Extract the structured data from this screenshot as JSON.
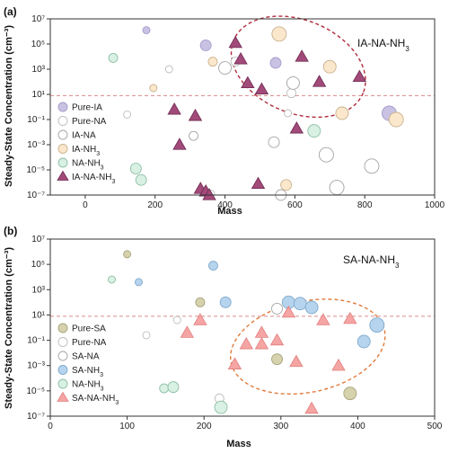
{
  "chart_data": [
    {
      "type": "scatter",
      "panel_label": "(a)",
      "title": "IA-NA-NH3",
      "title_parts": [
        "IA-NA-NH",
        "3"
      ],
      "xlabel": "Mass",
      "ylabel": "Steady-State Concentration (cm⁻³)",
      "xlim": [
        -100,
        1000
      ],
      "ylim_log10": [
        -7,
        7
      ],
      "x_ticks": [
        "0",
        "200",
        "400",
        "600",
        "800",
        "1000"
      ],
      "y_ticks": [
        "10⁻⁷",
        "10⁻⁵",
        "10⁻³",
        "10⁻¹",
        "10¹",
        "10³",
        "10⁵",
        "10⁷"
      ],
      "threshold_log10": 0.9,
      "grid": false,
      "legend_position": "lower-left",
      "ellipse": {
        "cx": 610,
        "cy_log10": 3.2,
        "rx": 200,
        "ry_log10": 3.7,
        "rotate": 22,
        "color": "#b02a3a"
      },
      "series": [
        {
          "name": "Pure-IA",
          "label_parts": [
            "Pure-IA",
            ""
          ],
          "shape": "circle",
          "fill": "#c9c2e3",
          "stroke": "#a59cc9",
          "x": [
            175,
            345,
            545,
            870
          ],
          "y_log10": [
            6.1,
            4.9,
            3.5,
            -0.5
          ],
          "size": [
            4,
            6,
            6,
            8
          ]
        },
        {
          "name": "Pure-NA",
          "label_parts": [
            "Pure-NA",
            ""
          ],
          "shape": "circle",
          "fill": "#ffffff",
          "stroke": "#bdbdbd",
          "x": [
            120,
            240,
            360,
            430,
            580,
            590
          ],
          "y_log10": [
            -0.6,
            3.0,
            -6.9,
            3.6,
            -0.5,
            1.1
          ],
          "size": [
            4,
            4,
            4,
            5,
            4,
            5
          ]
        },
        {
          "name": "IA-NA",
          "label_parts": [
            "IA-NA",
            ""
          ],
          "shape": "circle",
          "fill": "#ffffff",
          "stroke": "#a3a3a3",
          "x": [
            310,
            400,
            540,
            560,
            595,
            690,
            720,
            820
          ],
          "y_log10": [
            -2.3,
            3.1,
            -2.8,
            -7.0,
            1.9,
            -3.8,
            -6.4,
            -4.7
          ],
          "size": [
            5,
            7,
            6,
            6,
            7,
            8,
            8,
            8
          ]
        },
        {
          "name": "IA-NH3",
          "label_parts": [
            "IA-NH",
            "3"
          ],
          "shape": "circle",
          "fill": "#fbe7cc",
          "stroke": "#c9b28d",
          "x": [
            195,
            365,
            555,
            575,
            700,
            735,
            890
          ],
          "y_log10": [
            1.5,
            3.6,
            5.8,
            -6.2,
            3.2,
            -0.5,
            -1.0
          ],
          "size": [
            4,
            5,
            8,
            6,
            7,
            7,
            8
          ]
        },
        {
          "name": "NA-NH3",
          "label_parts": [
            "NA-NH",
            "3"
          ],
          "shape": "circle",
          "fill": "#d9f0e4",
          "stroke": "#8dbfa4",
          "x": [
            80,
            145,
            160,
            655
          ],
          "y_log10": [
            3.9,
            -4.9,
            -5.8,
            -1.9
          ],
          "size": [
            5,
            6,
            6,
            7
          ]
        },
        {
          "name": "IA-NA-NH3",
          "label_parts": [
            "IA-NA-NH",
            "3"
          ],
          "shape": "triangle",
          "fill": "#a24a7a",
          "stroke": "#6e2a52",
          "x": [
            255,
            270,
            315,
            330,
            345,
            355,
            430,
            445,
            465,
            495,
            505,
            605,
            620,
            670,
            785
          ],
          "y_log10": [
            -0.2,
            -3.0,
            -0.7,
            -6.5,
            -6.7,
            -7.0,
            5.1,
            3.8,
            1.9,
            -6.1,
            1.4,
            -1.7,
            4.0,
            2.0,
            2.4
          ]
        }
      ]
    },
    {
      "type": "scatter",
      "panel_label": "(b)",
      "title": "SA-NA-NH3",
      "title_parts": [
        "SA-NA-NH",
        "3"
      ],
      "xlabel": "Mass",
      "ylabel": "Steady-State Concentration (cm⁻³)",
      "xlim": [
        0,
        500
      ],
      "ylim_log10": [
        -7,
        7
      ],
      "x_ticks": [
        "0",
        "100",
        "200",
        "300",
        "400",
        "500"
      ],
      "y_ticks": [
        "10⁻⁷",
        "10⁻⁵",
        "10⁻³",
        "10⁻¹",
        "10¹",
        "10³",
        "10⁵",
        "10⁷"
      ],
      "threshold_log10": 0.9,
      "grid": false,
      "legend_position": "lower-left",
      "ellipse": {
        "cx": 335,
        "cy_log10": -1.5,
        "rx": 102,
        "ry_log10": 3.6,
        "rotate": -12,
        "color": "#e07a3c"
      },
      "series": [
        {
          "name": "Pure-SA",
          "label_parts": [
            "Pure-SA",
            ""
          ],
          "shape": "circle",
          "fill": "#d6d2ad",
          "stroke": "#a8a27a",
          "x": [
            100,
            195,
            295,
            390
          ],
          "y_log10": [
            5.8,
            2.0,
            -2.5,
            -5.2
          ],
          "size": [
            4,
            5,
            6,
            7
          ]
        },
        {
          "name": "Pure-NA",
          "label_parts": [
            "Pure-NA",
            ""
          ],
          "shape": "circle",
          "fill": "#ffffff",
          "stroke": "#bdbdbd",
          "x": [
            125,
            165,
            220
          ],
          "y_log10": [
            -0.6,
            0.6,
            -5.6
          ],
          "size": [
            4,
            4,
            5
          ]
        },
        {
          "name": "SA-NA",
          "label_parts": [
            "SA-NA",
            ""
          ],
          "shape": "circle",
          "fill": "#ffffff",
          "stroke": "#a3a3a3",
          "x": [
            295
          ],
          "y_log10": [
            1.5
          ],
          "size": [
            6
          ]
        },
        {
          "name": "SA-NH3",
          "label_parts": [
            "SA-NH",
            "3"
          ],
          "shape": "circle",
          "fill": "#b6d4ee",
          "stroke": "#7fa9cc",
          "x": [
            115,
            212,
            228,
            310,
            325,
            340,
            408,
            425
          ],
          "y_log10": [
            3.6,
            4.9,
            2.0,
            2.0,
            1.9,
            1.6,
            -1.1,
            0.2
          ],
          "size": [
            4,
            5,
            6,
            7,
            7,
            7,
            7,
            8
          ]
        },
        {
          "name": "NA-NH3",
          "label_parts": [
            "NA-NH",
            "3"
          ],
          "shape": "circle",
          "fill": "#d9f0e4",
          "stroke": "#8dbfa4",
          "x": [
            80,
            148,
            160,
            222
          ],
          "y_log10": [
            3.8,
            -4.8,
            -4.7,
            -6.3
          ],
          "size": [
            4,
            5,
            6,
            7
          ]
        },
        {
          "name": "SA-NA-NH3",
          "label_parts": [
            "SA-NA-NH",
            "3"
          ],
          "shape": "triangle",
          "fill": "#f5a5a3",
          "stroke": "#e07f7e",
          "x": [
            178,
            195,
            240,
            255,
            275,
            275,
            295,
            310,
            320,
            340,
            355,
            375,
            390
          ],
          "y_log10": [
            -0.4,
            0.6,
            -2.9,
            -1.3,
            -0.4,
            -1.3,
            -1.0,
            1.2,
            -2.7,
            -6.4,
            0.6,
            -3.0,
            0.7
          ]
        }
      ]
    }
  ]
}
